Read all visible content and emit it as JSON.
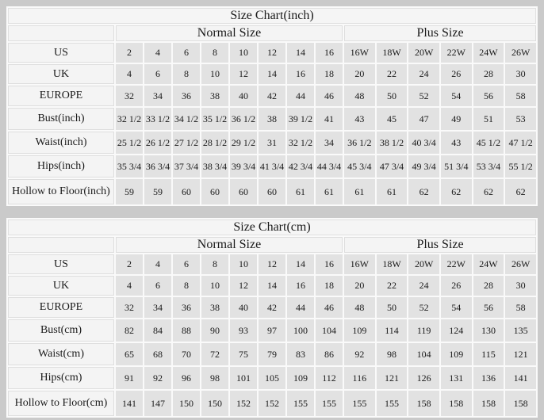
{
  "page": {
    "background_color": "#cacaca",
    "table_background": "#fafafa",
    "light_cell_color": "#f4f4f4",
    "data_cell_color": "#e2e2e2",
    "text_color": "#1a1a1a"
  },
  "chart_data": [
    {
      "type": "table",
      "title": "Size Chart(inch)",
      "column_groups": [
        {
          "label": "Normal Size",
          "span": 8
        },
        {
          "label": "Plus Size",
          "span": 6
        }
      ],
      "rows": [
        {
          "label": "US",
          "values": [
            "2",
            "4",
            "6",
            "8",
            "10",
            "12",
            "14",
            "16",
            "16W",
            "18W",
            "20W",
            "22W",
            "24W",
            "26W"
          ]
        },
        {
          "label": "UK",
          "values": [
            "4",
            "6",
            "8",
            "10",
            "12",
            "14",
            "16",
            "18",
            "20",
            "22",
            "24",
            "26",
            "28",
            "30"
          ]
        },
        {
          "label": "EUROPE",
          "values": [
            "32",
            "34",
            "36",
            "38",
            "40",
            "42",
            "44",
            "46",
            "48",
            "50",
            "52",
            "54",
            "56",
            "58"
          ]
        },
        {
          "label": "Bust(inch)",
          "values": [
            "32 1/2",
            "33 1/2",
            "34 1/2",
            "35 1/2",
            "36 1/2",
            "38",
            "39 1/2",
            "41",
            "43",
            "45",
            "47",
            "49",
            "51",
            "53"
          ]
        },
        {
          "label": "Waist(inch)",
          "values": [
            "25 1/2",
            "26 1/2",
            "27 1/2",
            "28 1/2",
            "29 1/2",
            "31",
            "32 1/2",
            "34",
            "36 1/2",
            "38 1/2",
            "40 3/4",
            "43",
            "45 1/2",
            "47 1/2"
          ]
        },
        {
          "label": "Hips(inch)",
          "values": [
            "35 3/4",
            "36 3/4",
            "37 3/4",
            "38 3/4",
            "39 3/4",
            "41 3/4",
            "42 3/4",
            "44 3/4",
            "45 3/4",
            "47 3/4",
            "49 3/4",
            "51 3/4",
            "53 3/4",
            "55 1/2"
          ]
        },
        {
          "label": "Hollow to Floor(inch)",
          "values": [
            "59",
            "59",
            "60",
            "60",
            "60",
            "60",
            "61",
            "61",
            "61",
            "61",
            "62",
            "62",
            "62",
            "62"
          ]
        }
      ]
    },
    {
      "type": "table",
      "title": "Size Chart(cm)",
      "column_groups": [
        {
          "label": "Normal Size",
          "span": 8
        },
        {
          "label": "Plus Size",
          "span": 6
        }
      ],
      "rows": [
        {
          "label": "US",
          "values": [
            "2",
            "4",
            "6",
            "8",
            "10",
            "12",
            "14",
            "16",
            "16W",
            "18W",
            "20W",
            "22W",
            "24W",
            "26W"
          ]
        },
        {
          "label": "UK",
          "values": [
            "4",
            "6",
            "8",
            "10",
            "12",
            "14",
            "16",
            "18",
            "20",
            "22",
            "24",
            "26",
            "28",
            "30"
          ]
        },
        {
          "label": "EUROPE",
          "values": [
            "32",
            "34",
            "36",
            "38",
            "40",
            "42",
            "44",
            "46",
            "48",
            "50",
            "52",
            "54",
            "56",
            "58"
          ]
        },
        {
          "label": "Bust(cm)",
          "values": [
            "82",
            "84",
            "88",
            "90",
            "93",
            "97",
            "100",
            "104",
            "109",
            "114",
            "119",
            "124",
            "130",
            "135"
          ]
        },
        {
          "label": "Waist(cm)",
          "values": [
            "65",
            "68",
            "70",
            "72",
            "75",
            "79",
            "83",
            "86",
            "92",
            "98",
            "104",
            "109",
            "115",
            "121"
          ]
        },
        {
          "label": "Hips(cm)",
          "values": [
            "91",
            "92",
            "96",
            "98",
            "101",
            "105",
            "109",
            "112",
            "116",
            "121",
            "126",
            "131",
            "136",
            "141"
          ]
        },
        {
          "label": "Hollow to Floor(cm)",
          "values": [
            "141",
            "147",
            "150",
            "150",
            "152",
            "152",
            "155",
            "155",
            "155",
            "155",
            "158",
            "158",
            "158",
            "158"
          ]
        }
      ]
    }
  ]
}
